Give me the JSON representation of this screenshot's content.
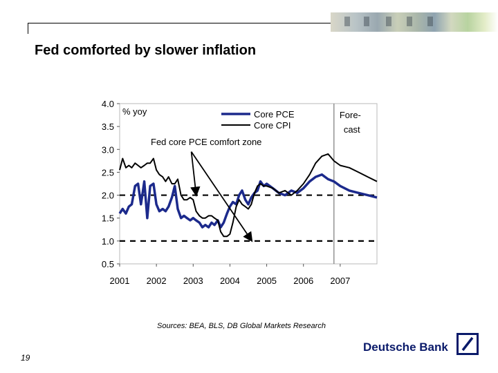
{
  "page": {
    "title": "Fed comforted by slower inflation",
    "sources": "Sources: BEA, BLS, DB Global Markets Research",
    "page_number": "19",
    "brand": "Deutsche Bank",
    "colors": {
      "core_pce": "#1c2a8c",
      "core_cpi": "#000000",
      "brand": "#0a1a6a"
    }
  },
  "chart_data": {
    "type": "line",
    "unit_label": "% yoy",
    "ylim": [
      0.5,
      4.0
    ],
    "y_ticks": [
      "0.5",
      "1.0",
      "1.5",
      "2.0",
      "2.5",
      "3.0",
      "3.5",
      "4.0"
    ],
    "xlim": [
      2001.0,
      2008.0
    ],
    "x_ticks": [
      "2001",
      "2002",
      "2003",
      "2004",
      "2005",
      "2006",
      "2007"
    ],
    "forecast_start": 2006.83,
    "forecast_label": [
      "Fore-",
      "cast"
    ],
    "comfort_zone": {
      "label": "Fed core PCE comfort zone",
      "lower": 1.0,
      "upper": 2.0
    },
    "legend_position": "top-right",
    "grid": false,
    "series": [
      {
        "name": "Core PCE",
        "color": "#1c2a8c",
        "x": [
          2001.0,
          2001.08,
          2001.17,
          2001.25,
          2001.33,
          2001.42,
          2001.5,
          2001.58,
          2001.67,
          2001.75,
          2001.83,
          2001.92,
          2002.0,
          2002.08,
          2002.17,
          2002.25,
          2002.33,
          2002.42,
          2002.5,
          2002.58,
          2002.67,
          2002.75,
          2002.83,
          2002.92,
          2003.0,
          2003.08,
          2003.17,
          2003.25,
          2003.33,
          2003.42,
          2003.5,
          2003.58,
          2003.67,
          2003.75,
          2003.83,
          2003.92,
          2004.0,
          2004.08,
          2004.17,
          2004.25,
          2004.33,
          2004.42,
          2004.5,
          2004.58,
          2004.67,
          2004.75,
          2004.83,
          2004.92,
          2005.0,
          2005.17,
          2005.33,
          2005.5,
          2005.67,
          2005.83,
          2006.0,
          2006.17,
          2006.33,
          2006.5,
          2006.67,
          2006.83,
          2007.0,
          2007.25,
          2007.5,
          2007.75,
          2008.0
        ],
        "values": [
          1.6,
          1.7,
          1.6,
          1.75,
          1.8,
          2.2,
          2.25,
          1.8,
          2.3,
          1.5,
          2.2,
          2.25,
          1.8,
          1.65,
          1.7,
          1.65,
          1.75,
          1.95,
          2.2,
          1.7,
          1.5,
          1.55,
          1.5,
          1.45,
          1.5,
          1.45,
          1.4,
          1.3,
          1.35,
          1.3,
          1.4,
          1.35,
          1.45,
          1.3,
          1.4,
          1.6,
          1.75,
          1.85,
          1.8,
          2.0,
          2.1,
          1.9,
          1.8,
          1.95,
          2.05,
          2.1,
          2.3,
          2.2,
          2.25,
          2.15,
          2.05,
          2.0,
          2.1,
          2.05,
          2.15,
          2.3,
          2.4,
          2.45,
          2.35,
          2.3,
          2.2,
          2.1,
          2.05,
          2.0,
          1.95
        ]
      },
      {
        "name": "Core CPI",
        "color": "#000000",
        "x": [
          2001.0,
          2001.08,
          2001.17,
          2001.25,
          2001.33,
          2001.42,
          2001.5,
          2001.58,
          2001.67,
          2001.75,
          2001.83,
          2001.92,
          2002.0,
          2002.08,
          2002.17,
          2002.25,
          2002.33,
          2002.42,
          2002.5,
          2002.58,
          2002.67,
          2002.75,
          2002.83,
          2002.92,
          2003.0,
          2003.08,
          2003.17,
          2003.25,
          2003.33,
          2003.42,
          2003.5,
          2003.58,
          2003.67,
          2003.75,
          2003.83,
          2003.92,
          2004.0,
          2004.08,
          2004.17,
          2004.25,
          2004.33,
          2004.42,
          2004.5,
          2004.58,
          2004.67,
          2004.75,
          2004.83,
          2004.92,
          2005.0,
          2005.17,
          2005.33,
          2005.5,
          2005.67,
          2005.83,
          2006.0,
          2006.17,
          2006.33,
          2006.5,
          2006.67,
          2006.83,
          2007.0,
          2007.25,
          2007.5,
          2007.75,
          2008.0
        ],
        "values": [
          2.55,
          2.8,
          2.6,
          2.65,
          2.6,
          2.7,
          2.65,
          2.6,
          2.65,
          2.7,
          2.7,
          2.8,
          2.55,
          2.45,
          2.4,
          2.3,
          2.4,
          2.25,
          2.25,
          2.35,
          2.0,
          1.9,
          1.9,
          1.95,
          1.9,
          1.65,
          1.55,
          1.5,
          1.5,
          1.55,
          1.55,
          1.5,
          1.45,
          1.2,
          1.1,
          1.1,
          1.15,
          1.4,
          1.75,
          1.9,
          1.8,
          1.75,
          1.7,
          1.8,
          2.05,
          2.2,
          2.25,
          2.2,
          2.2,
          2.15,
          2.05,
          2.1,
          2.0,
          2.1,
          2.25,
          2.45,
          2.7,
          2.85,
          2.9,
          2.75,
          2.65,
          2.6,
          2.5,
          2.4,
          2.3
        ]
      }
    ]
  }
}
